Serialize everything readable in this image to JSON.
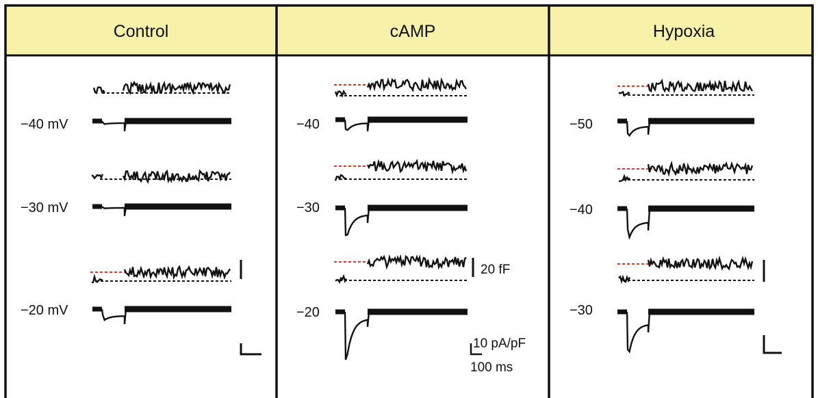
{
  "colors": {
    "header_fill": "#f8f1aa",
    "border": "#111111",
    "trace": "#111111",
    "red_dashed": "#e0321e",
    "black_dashed": "#111111"
  },
  "panels": [
    {
      "title": "Control",
      "voltages": [
        "−40 mV",
        "−30 mV",
        "−20 mV"
      ],
      "red_reference_on_row": [
        false,
        false,
        true
      ]
    },
    {
      "title": "cAMP",
      "voltages": [
        "−40",
        "−30",
        "−20"
      ],
      "red_reference_on_row": [
        true,
        true,
        true
      ]
    },
    {
      "title": "Hypoxia",
      "voltages": [
        "−50",
        "−40",
        "−30"
      ],
      "red_reference_on_row": [
        true,
        true,
        true
      ]
    }
  ],
  "scale_bars": {
    "capacitance": "20 fF",
    "current": "10 pA/pF",
    "time": "100 ms"
  }
}
